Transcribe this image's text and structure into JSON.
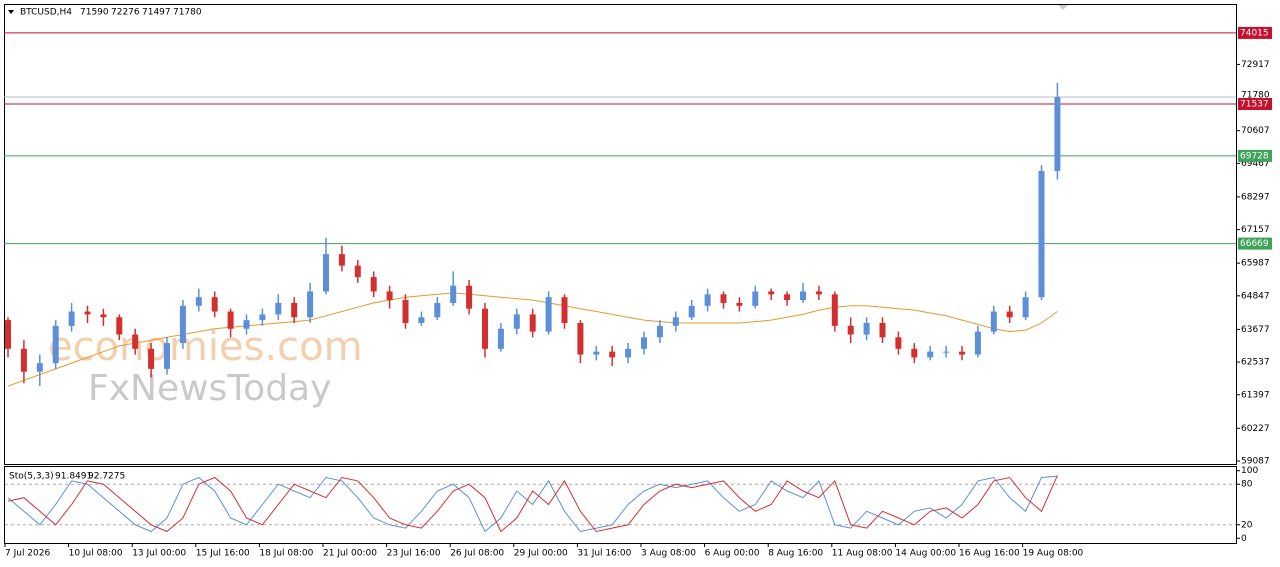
{
  "chart_data": {
    "type": "candlestick",
    "symbol": "BTCUSD,H4",
    "ohlc": [
      71590,
      72276,
      71497,
      71780
    ],
    "watermarks": [
      "economies.com",
      "FxNewsToday"
    ],
    "bull_color": "#5b8fd9",
    "bear_color": "#d32f2f",
    "ylim": [
      58983,
      74989
    ],
    "yticks": [
      72917,
      70607,
      69467,
      68297,
      67157,
      65987,
      64847,
      63677,
      62537,
      61397,
      60227,
      59087
    ],
    "x_labels": [
      "7 Jul 2026",
      "10 Jul 08:00",
      "13 Jul 00:00",
      "15 Jul 16:00",
      "18 Jul 08:00",
      "21 Jul 00:00",
      "23 Jul 16:00",
      "26 Jul 08:00",
      "29 Jul 00:00",
      "31 Jul 16:00",
      "3 Aug 08:00",
      "6 Aug 00:00",
      "8 Aug 16:00",
      "11 Aug 08:00",
      "14 Aug 00:00",
      "16 Aug 16:00",
      "19 Aug 08:00"
    ],
    "levels": [
      {
        "value": 74015,
        "color": "#c8102e"
      },
      {
        "value": 71537,
        "color": "#c8102e"
      },
      {
        "value": 69728,
        "color": "#3fa35a"
      },
      {
        "value": 66669,
        "color": "#3fa35a"
      }
    ],
    "candles": [
      [
        64000,
        64100,
        62700,
        63000
      ],
      [
        63000,
        63300,
        61800,
        62200
      ],
      [
        62200,
        62800,
        61700,
        62500
      ],
      [
        62500,
        64000,
        62300,
        63800
      ],
      [
        63800,
        64600,
        63600,
        64300
      ],
      [
        64300,
        64500,
        63900,
        64200
      ],
      [
        64200,
        64400,
        63800,
        64100
      ],
      [
        64100,
        64200,
        63300,
        63500
      ],
      [
        63500,
        63700,
        62800,
        63000
      ],
      [
        63000,
        63200,
        62000,
        62300
      ],
      [
        62300,
        63400,
        62100,
        63200
      ],
      [
        63200,
        64700,
        63000,
        64500
      ],
      [
        64500,
        65100,
        64300,
        64800
      ],
      [
        64800,
        65000,
        64100,
        64300
      ],
      [
        64300,
        64400,
        63400,
        63700
      ],
      [
        63700,
        64200,
        63500,
        64000
      ],
      [
        64000,
        64400,
        63800,
        64200
      ],
      [
        64200,
        64900,
        64000,
        64600
      ],
      [
        64600,
        64800,
        63900,
        64100
      ],
      [
        64100,
        65300,
        63900,
        65000
      ],
      [
        65000,
        66870,
        64900,
        66300
      ],
      [
        66300,
        66600,
        65700,
        65900
      ],
      [
        65900,
        66100,
        65300,
        65500
      ],
      [
        65500,
        65700,
        64800,
        65000
      ],
      [
        65000,
        65200,
        64400,
        64700
      ],
      [
        64700,
        64900,
        63700,
        63900
      ],
      [
        63900,
        64300,
        63800,
        64100
      ],
      [
        64100,
        64800,
        64000,
        64600
      ],
      [
        64600,
        65700,
        64500,
        65200
      ],
      [
        65200,
        65400,
        64200,
        64400
      ],
      [
        64400,
        64600,
        62700,
        63000
      ],
      [
        63000,
        63900,
        62900,
        63700
      ],
      [
        63700,
        64400,
        63500,
        64200
      ],
      [
        64200,
        64400,
        63400,
        63600
      ],
      [
        63600,
        65000,
        63500,
        64800
      ],
      [
        64800,
        64900,
        63700,
        63900
      ],
      [
        63900,
        64000,
        62500,
        62800
      ],
      [
        62800,
        63100,
        62600,
        62900
      ],
      [
        62900,
        63100,
        62400,
        62700
      ],
      [
        62700,
        63200,
        62500,
        63000
      ],
      [
        63000,
        63600,
        62800,
        63400
      ],
      [
        63400,
        64000,
        63200,
        63800
      ],
      [
        63800,
        64300,
        63600,
        64100
      ],
      [
        64100,
        64700,
        64000,
        64500
      ],
      [
        64500,
        65100,
        64300,
        64900
      ],
      [
        64900,
        65000,
        64400,
        64600
      ],
      [
        64600,
        64800,
        64300,
        64500
      ],
      [
        64500,
        65200,
        64400,
        65000
      ],
      [
        65000,
        65100,
        64700,
        64900
      ],
      [
        64900,
        65000,
        64500,
        64700
      ],
      [
        64700,
        65300,
        64600,
        65000
      ],
      [
        65000,
        65200,
        64700,
        64900
      ],
      [
        64900,
        65000,
        63600,
        63800
      ],
      [
        63800,
        64100,
        63200,
        63500
      ],
      [
        63500,
        64100,
        63300,
        63900
      ],
      [
        63900,
        64100,
        63200,
        63400
      ],
      [
        63400,
        63600,
        62800,
        63000
      ],
      [
        63000,
        63200,
        62500,
        62700
      ],
      [
        62700,
        63100,
        62600,
        62900
      ],
      [
        62900,
        63100,
        62700,
        62900
      ],
      [
        62900,
        63100,
        62600,
        62800
      ],
      [
        62800,
        63800,
        62700,
        63600
      ],
      [
        63600,
        64500,
        63500,
        64300
      ],
      [
        64300,
        64500,
        63900,
        64100
      ],
      [
        64100,
        65000,
        64000,
        64800
      ],
      [
        64800,
        69400,
        64700,
        69200
      ],
      [
        69200,
        72276,
        68900,
        71780
      ]
    ],
    "ma_color": "#e69a2e",
    "ma": [
      61700,
      61900,
      62100,
      62300,
      62500,
      62700,
      62900,
      63100,
      63200,
      63300,
      63400,
      63500,
      63600,
      63700,
      63750,
      63800,
      63850,
      63900,
      63950,
      64000,
      64150,
      64300,
      64450,
      64600,
      64700,
      64800,
      64850,
      64900,
      64950,
      64900,
      64850,
      64800,
      64750,
      64700,
      64600,
      64500,
      64400,
      64300,
      64200,
      64100,
      64000,
      63950,
      63900,
      63900,
      63900,
      63900,
      63900,
      63950,
      64000,
      64100,
      64200,
      64350,
      64450,
      64500,
      64500,
      64450,
      64400,
      64350,
      64250,
      64150,
      64000,
      63850,
      63700,
      63600,
      63650,
      63900,
      64300
    ],
    "stochastic": {
      "label": "Sto(5,3,3)",
      "ylim": [
        -7,
        107
      ],
      "yticks": [
        100,
        80,
        20,
        0
      ],
      "k_color": "#5b8fd9",
      "d_color": "#d32f2f",
      "k": [
        60,
        40,
        20,
        50,
        85,
        80,
        60,
        40,
        20,
        10,
        30,
        80,
        90,
        70,
        30,
        20,
        50,
        80,
        70,
        60,
        90,
        85,
        60,
        30,
        20,
        15,
        40,
        70,
        80,
        60,
        10,
        30,
        70,
        50,
        85,
        40,
        10,
        15,
        20,
        50,
        70,
        80,
        75,
        80,
        85,
        60,
        40,
        50,
        85,
        70,
        60,
        85,
        20,
        15,
        40,
        30,
        20,
        40,
        45,
        30,
        50,
        85,
        90,
        60,
        40,
        90,
        91.8491
      ],
      "d": [
        55,
        60,
        40,
        20,
        50,
        85,
        80,
        60,
        40,
        20,
        10,
        30,
        80,
        90,
        70,
        30,
        20,
        50,
        80,
        70,
        60,
        90,
        85,
        60,
        30,
        20,
        15,
        40,
        70,
        80,
        60,
        10,
        30,
        70,
        50,
        85,
        40,
        10,
        15,
        20,
        50,
        70,
        80,
        75,
        80,
        85,
        60,
        40,
        50,
        85,
        70,
        60,
        85,
        20,
        15,
        40,
        30,
        20,
        40,
        45,
        30,
        50,
        85,
        90,
        60,
        40,
        92.7275
      ]
    }
  }
}
